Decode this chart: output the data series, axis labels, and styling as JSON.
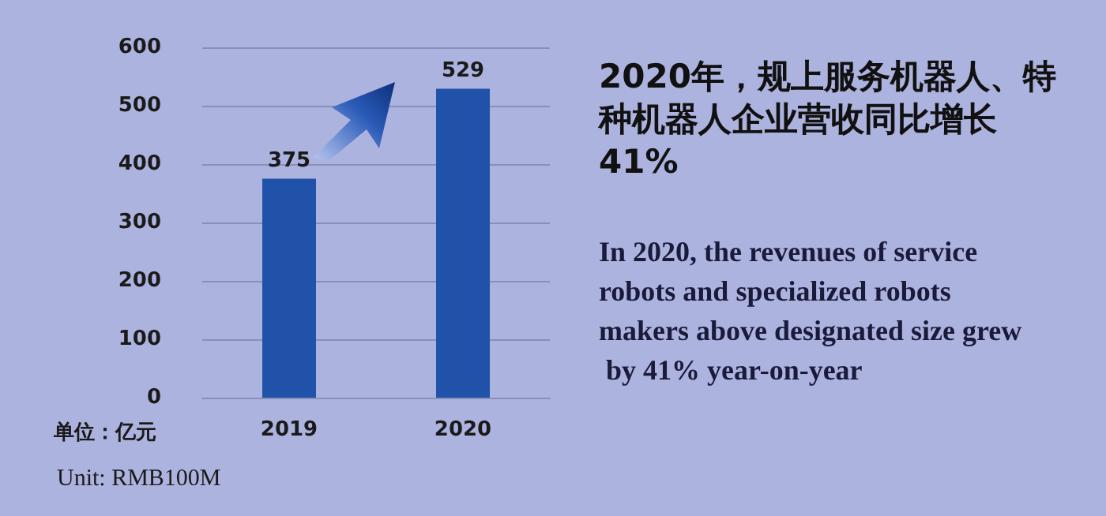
{
  "chart_data": {
    "type": "bar",
    "title": "2020年，规上服务机器人、特种机器人企业营收同比增长41%",
    "subtitle": "In 2020, the revenues of service robots and specialized robots makers above designated size grew by 41% year-on-year",
    "ylabel": "单位：亿元",
    "annotations": [
      "Unit: RMB100M"
    ],
    "categories": [
      "2019",
      "2020"
    ],
    "values": [
      375,
      529
    ],
    "color": "#1f52a8",
    "ylim": [
      0,
      600
    ],
    "yticks": [
      0,
      100,
      200,
      300,
      400,
      500,
      600
    ],
    "grid": "y",
    "data_labels": true
  }
}
